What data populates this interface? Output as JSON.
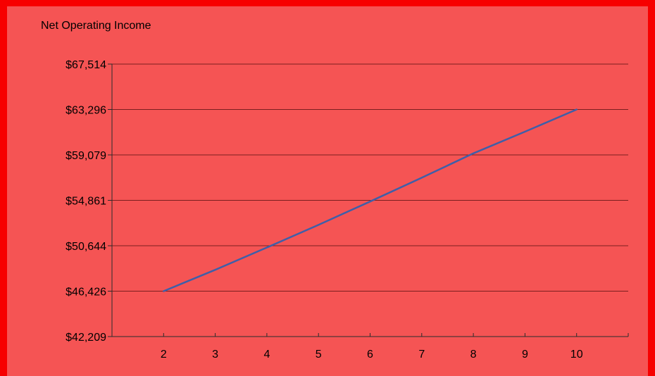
{
  "colors": {
    "outer_background": "#f70000",
    "plot_background": "#f55454",
    "grid": "#7a1f1f",
    "axis": "#2b2b2b",
    "series_line": "#3f5fa8"
  },
  "chart_data": {
    "type": "line",
    "title": "Net Operating Income",
    "xlabel": "",
    "ylabel": "",
    "x_ticks": [
      2,
      3,
      4,
      5,
      6,
      7,
      8,
      9,
      10
    ],
    "y_ticks": [
      "$42,209",
      "$46,426",
      "$50,644",
      "$54,861",
      "$59,079",
      "$63,296",
      "$67,514"
    ],
    "xlim": [
      1,
      11
    ],
    "ylim": [
      42209,
      67514
    ],
    "grid": true,
    "legend": "none",
    "series": [
      {
        "x": [
          2,
          3,
          4,
          5,
          6,
          7,
          8,
          9,
          10
        ],
        "values": [
          46426,
          48410,
          50480,
          52580,
          54750,
          56960,
          59220,
          61240,
          63296
        ]
      }
    ]
  }
}
